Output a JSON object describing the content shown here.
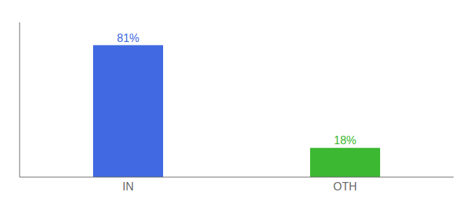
{
  "chart_data": {
    "type": "bar",
    "categories": [
      "IN",
      "OTH"
    ],
    "values": [
      81,
      18
    ],
    "value_labels": [
      "81%",
      "18%"
    ],
    "colors": [
      "#4169E1",
      "#3CB832"
    ],
    "ylim": [
      0,
      95
    ],
    "yticks": [],
    "tick_labels": "x",
    "data_labels": true
  }
}
